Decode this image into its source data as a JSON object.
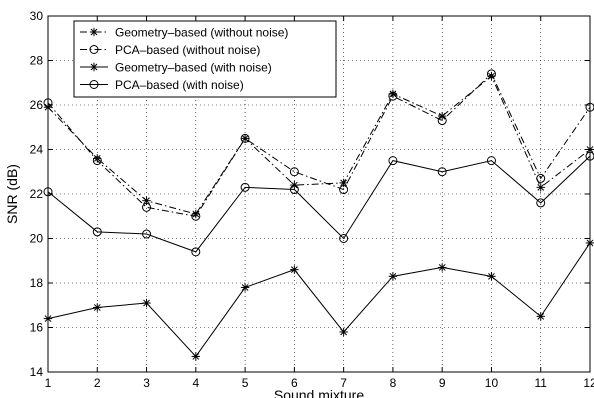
{
  "chart_data": {
    "type": "line",
    "title": "",
    "xlabel": "Sound mixture",
    "ylabel": "SNR (dB)",
    "x": [
      1,
      2,
      3,
      4,
      5,
      6,
      7,
      8,
      9,
      10,
      11,
      12
    ],
    "xlim": [
      1,
      12
    ],
    "ylim": [
      14,
      30
    ],
    "x_ticks": [
      "1",
      "2",
      "3",
      "4",
      "5",
      "6",
      "7",
      "8",
      "9",
      "10",
      "11",
      "12"
    ],
    "y_ticks": [
      "14",
      "16",
      "18",
      "20",
      "22",
      "24",
      "26",
      "28",
      "30"
    ],
    "grid": true,
    "legend_position": "top-left",
    "series": [
      {
        "name": "Geometry–based (without noise)",
        "line": "dashdot",
        "marker": "star",
        "values": [
          25.9,
          23.6,
          21.7,
          21.1,
          24.5,
          22.4,
          22.5,
          26.5,
          25.5,
          27.3,
          22.3,
          24.0
        ]
      },
      {
        "name": "PCA–based (without noise)",
        "line": "dashdot",
        "marker": "circle",
        "values": [
          26.1,
          23.5,
          21.4,
          21.0,
          24.5,
          23.0,
          22.2,
          26.4,
          25.3,
          27.4,
          22.7,
          25.9
        ]
      },
      {
        "name": "Geometry–based (with noise)",
        "line": "solid",
        "marker": "star",
        "values": [
          16.4,
          16.9,
          17.1,
          14.7,
          17.8,
          18.6,
          15.8,
          18.3,
          18.7,
          18.3,
          16.5,
          19.8
        ]
      },
      {
        "name": "PCA–based (with noise)",
        "line": "solid",
        "marker": "circle",
        "values": [
          22.1,
          20.3,
          20.2,
          19.4,
          22.3,
          22.2,
          20.0,
          23.5,
          23.0,
          23.5,
          21.6,
          23.7
        ]
      }
    ]
  }
}
